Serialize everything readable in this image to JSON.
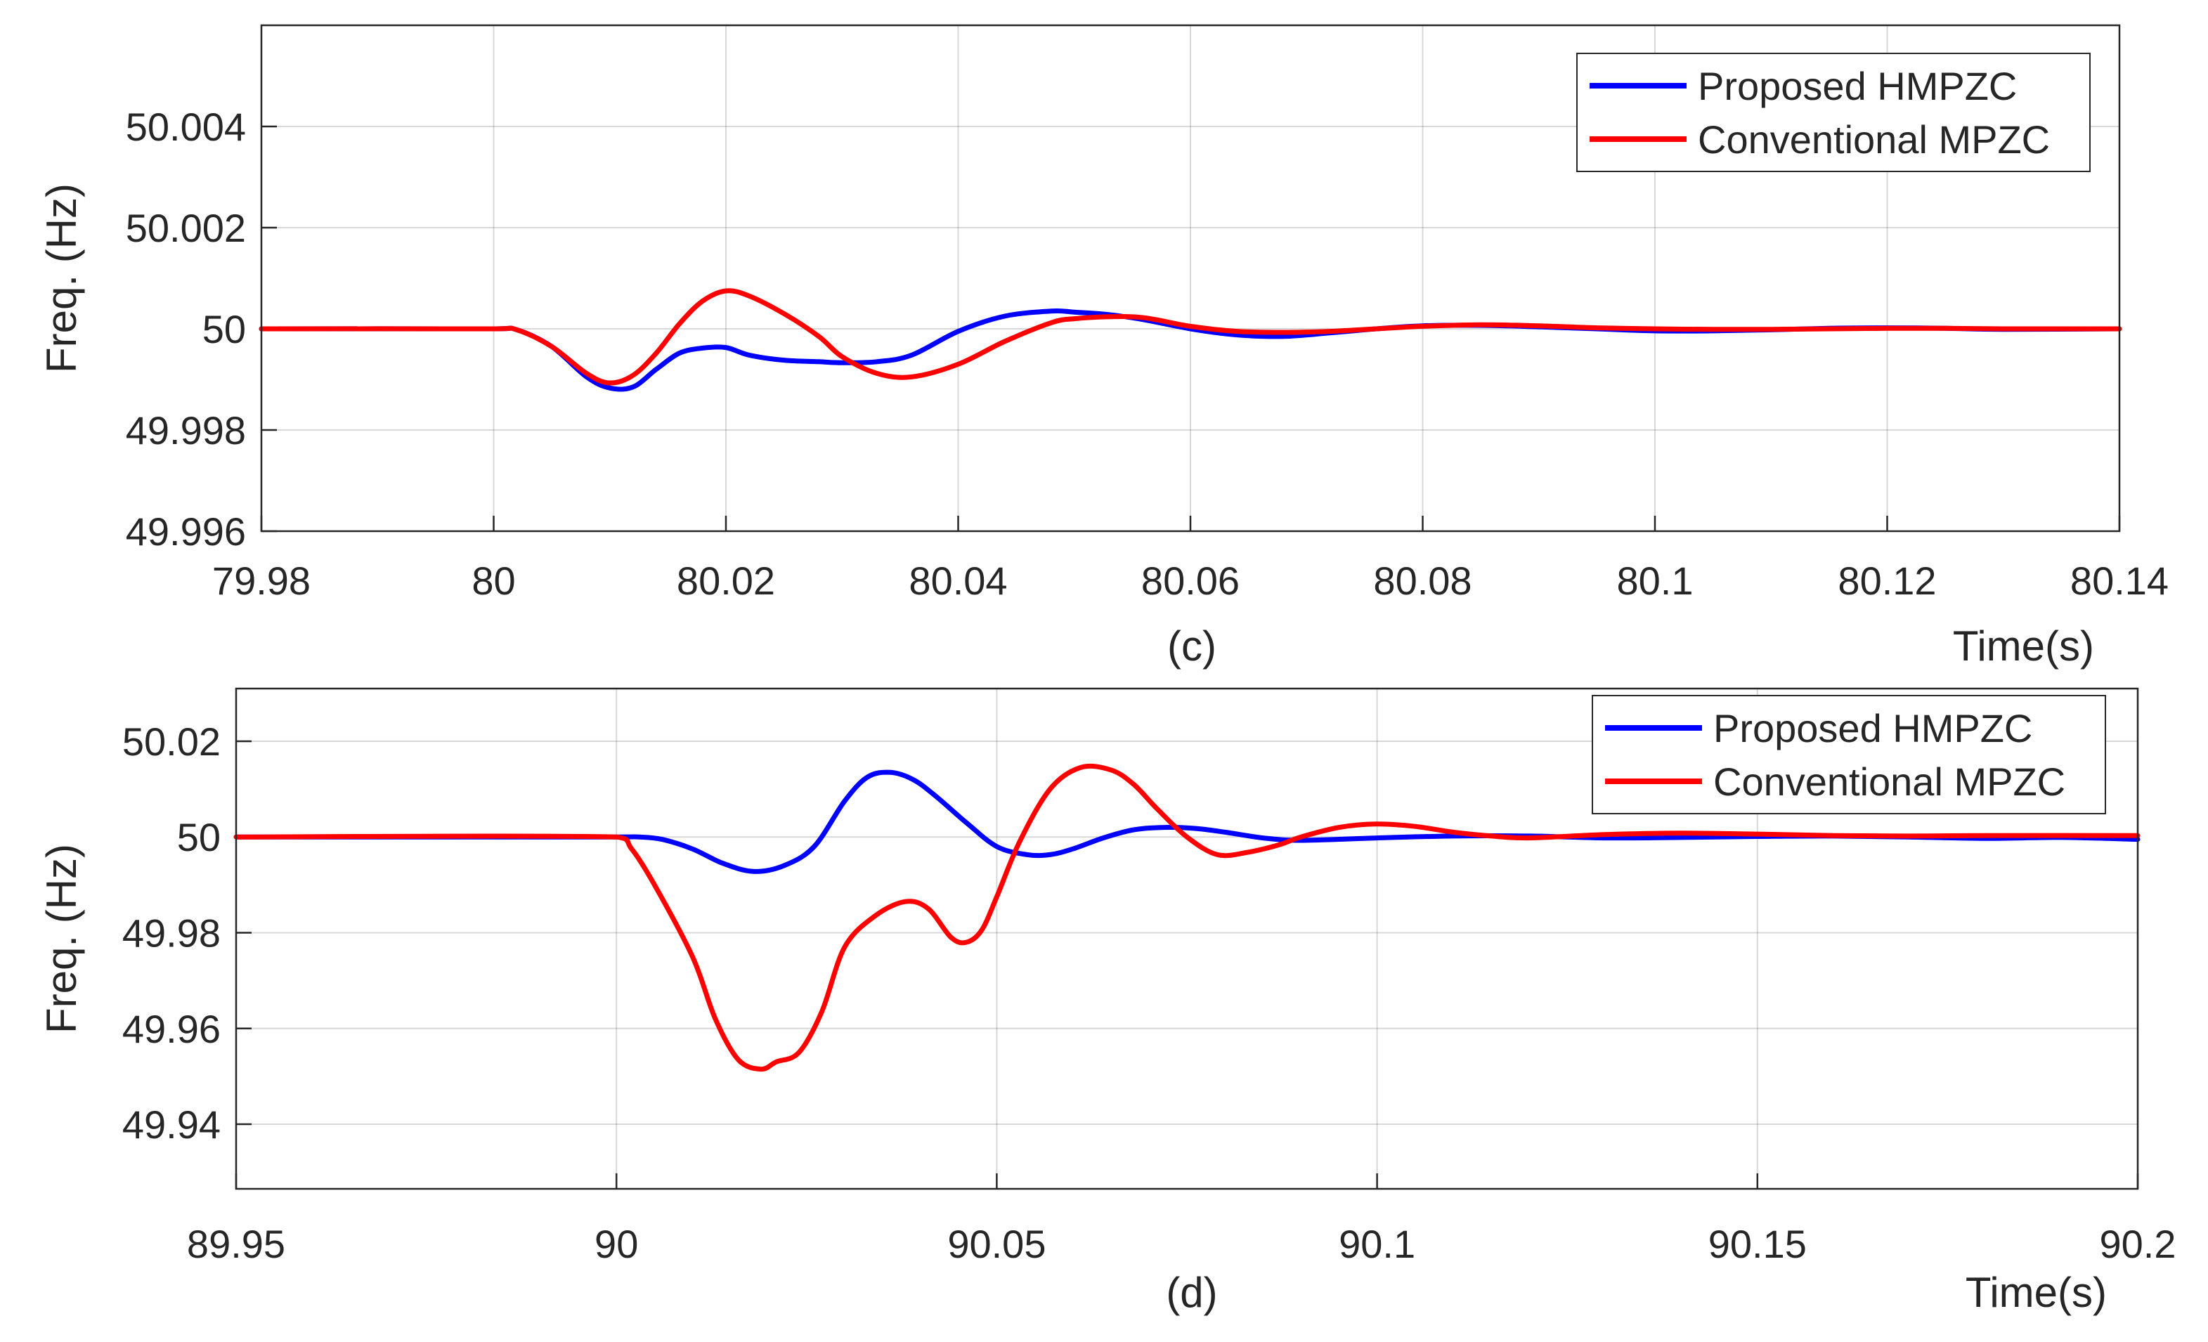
{
  "chart_data": [
    {
      "type": "line",
      "title": "",
      "caption": "(c)",
      "xlabel": "Time(s)",
      "ylabel": "Freq. (Hz)",
      "xlim": [
        79.98,
        80.14
      ],
      "ylim": [
        49.996,
        50.006
      ],
      "xticks": [
        79.98,
        80,
        80.02,
        80.04,
        80.06,
        80.08,
        80.1,
        80.12,
        80.14
      ],
      "xtick_labels": [
        "79.98",
        "80",
        "80.02",
        "80.04",
        "80.06",
        "80.08",
        "80.1",
        "80.12",
        "80.14"
      ],
      "yticks": [
        49.996,
        49.998,
        50,
        50.002,
        50.004
      ],
      "ytick_labels": [
        "49.996",
        "49.998",
        "50",
        "50.002",
        "50.004"
      ],
      "grid": true,
      "legend_position": "top-right",
      "series": [
        {
          "name": "Proposed HMPZC",
          "color": "#0000ff",
          "x": [
            79.98,
            80.0,
            80.002,
            80.005,
            80.008,
            80.01,
            80.012,
            80.014,
            80.016,
            80.018,
            80.02,
            80.022,
            80.025,
            80.028,
            80.03,
            80.033,
            80.036,
            80.04,
            80.044,
            80.048,
            80.05,
            80.053,
            80.056,
            80.06,
            80.064,
            80.068,
            80.072,
            80.076,
            80.08,
            80.085,
            80.09,
            80.095,
            80.1,
            80.105,
            80.11,
            80.115,
            80.12,
            80.125,
            80.13,
            80.14
          ],
          "y": [
            50.0,
            50.0,
            49.99998,
            49.99965,
            49.99905,
            49.99883,
            49.99885,
            49.9992,
            49.99952,
            49.99962,
            49.99963,
            49.99948,
            49.99938,
            49.99935,
            49.99933,
            49.99935,
            49.99948,
            49.99995,
            50.00025,
            50.00035,
            50.00033,
            50.00028,
            50.00018,
            50.0,
            49.99988,
            49.99985,
            49.99992,
            50.0,
            50.00006,
            50.00007,
            50.00004,
            50.0,
            49.99996,
            49.99996,
            49.99998,
            50.00001,
            50.00002,
            50.00001,
            49.99999,
            50.0
          ]
        },
        {
          "name": "Conventional MPZC",
          "color": "#ff0000",
          "x": [
            79.98,
            80.0,
            80.002,
            80.005,
            80.008,
            80.01,
            80.012,
            80.014,
            80.016,
            80.018,
            80.02,
            80.022,
            80.025,
            80.028,
            80.03,
            80.033,
            80.036,
            80.04,
            80.044,
            80.048,
            80.05,
            80.053,
            80.056,
            80.06,
            80.064,
            80.068,
            80.072,
            80.076,
            80.08,
            80.085,
            80.09,
            80.095,
            80.1,
            80.105,
            80.11,
            80.115,
            80.12,
            80.125,
            80.13,
            80.14
          ],
          "y": [
            50.0,
            50.0,
            49.99998,
            49.99965,
            49.99912,
            49.99893,
            49.99908,
            49.99952,
            50.0001,
            50.00055,
            50.00075,
            50.00065,
            50.0003,
            49.99985,
            49.99945,
            49.99912,
            49.99905,
            49.9993,
            49.99975,
            50.00012,
            50.0002,
            50.00024,
            50.00022,
            50.00005,
            49.99995,
            49.99993,
            49.99995,
            50.0,
            50.00005,
            50.00008,
            50.00006,
            50.00002,
            50.0,
            49.99999,
            49.99999,
            50.0,
            50.00001,
            50.00001,
            50.0,
            50.0
          ]
        }
      ]
    },
    {
      "type": "line",
      "title": "",
      "caption": "(d)",
      "xlabel": "Time(s)",
      "ylabel": "Freq. (Hz)",
      "xlim": [
        89.95,
        90.2
      ],
      "ylim": [
        49.9265,
        50.031
      ],
      "xticks": [
        89.95,
        90.0,
        90.05,
        90.1,
        90.15,
        90.2
      ],
      "xtick_labels": [
        "89.95",
        "90",
        "90.05",
        "90.1",
        "90.15",
        "90.2"
      ],
      "yticks": [
        49.94,
        49.96,
        49.98,
        50.0,
        50.02
      ],
      "ytick_labels": [
        "49.94",
        "49.96",
        "49.98",
        "50",
        "50.02"
      ],
      "grid": true,
      "legend_position": "top-right",
      "series": [
        {
          "name": "Proposed HMPZC",
          "color": "#0000ff",
          "x": [
            89.95,
            90.0,
            90.003,
            90.006,
            90.01,
            90.014,
            90.018,
            90.022,
            90.026,
            90.03,
            90.033,
            90.036,
            90.039,
            90.042,
            90.046,
            90.05,
            90.054,
            90.057,
            90.06,
            90.064,
            90.068,
            90.072,
            90.076,
            90.08,
            90.085,
            90.09,
            90.1,
            90.11,
            90.12,
            90.13,
            90.14,
            90.15,
            90.16,
            90.17,
            90.18,
            90.19,
            90.2
          ],
          "y": [
            50.0,
            50.0,
            50.0,
            49.9995,
            49.9975,
            49.9945,
            49.9928,
            49.994,
            49.998,
            50.0075,
            50.0125,
            50.0135,
            50.012,
            50.0085,
            50.003,
            49.998,
            49.9963,
            49.9963,
            49.9975,
            49.9998,
            50.0015,
            50.002,
            50.0018,
            50.001,
            49.9998,
            49.9993,
            49.9998,
            50.0002,
            50.0002,
            49.9998,
            49.9999,
            50.0001,
            50.0002,
            50.0,
            49.9997,
            49.9999,
            49.9995
          ]
        },
        {
          "name": "Conventional MPZC",
          "color": "#ff0000",
          "x": [
            89.95,
            90.0,
            90.002,
            90.005,
            90.01,
            90.013,
            90.016,
            90.019,
            90.021,
            90.024,
            90.027,
            90.03,
            90.034,
            90.038,
            90.041,
            90.044,
            90.046,
            90.048,
            90.05,
            90.053,
            90.057,
            90.061,
            90.065,
            90.068,
            90.071,
            90.075,
            90.079,
            90.083,
            90.087,
            90.09,
            90.095,
            90.1,
            90.105,
            90.11,
            90.115,
            90.12,
            90.13,
            90.14,
            90.15,
            90.16,
            90.17,
            90.18,
            90.2
          ],
          "y": [
            50.0,
            50.0,
            49.9975,
            49.99,
            49.975,
            49.962,
            49.9535,
            49.9515,
            49.953,
            49.955,
            49.9635,
            49.977,
            49.9835,
            49.9865,
            49.985,
            49.979,
            49.978,
            49.9805,
            49.9875,
            49.999,
            50.01,
            50.0145,
            50.014,
            50.011,
            50.006,
            50.0,
            49.9963,
            49.9968,
            49.9983,
            50.0,
            50.002,
            50.0027,
            50.0022,
            50.001,
            50.0002,
            49.9998,
            50.0005,
            50.0008,
            50.0006,
            50.0003,
            50.0002,
            50.0003,
            50.0003
          ]
        }
      ]
    }
  ]
}
